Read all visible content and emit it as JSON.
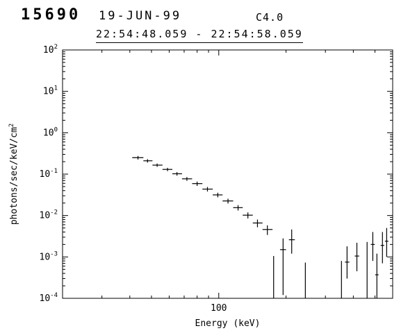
{
  "header": {
    "burst_number": "15690",
    "date": "19-JUN-99",
    "flare_class": "C4.0",
    "time_range": "22:54:48.059 - 22:54:58.059"
  },
  "chart_data": {
    "type": "scatter",
    "title": "15690 19-JUN-99 C4.0",
    "subtitle": "22:54:48.059 - 22:54:58.059",
    "xlabel": "Energy (keV)",
    "ylabel": "photons/sec/keV/cm^2",
    "x_scale": "log",
    "y_scale": "log",
    "xlim": [
      20,
      600
    ],
    "ylim": [
      0.0001,
      100.0
    ],
    "grid": false,
    "legend": "none",
    "marker": "plus-with-error-bars",
    "color": "#000000",
    "x_major_ticks": [
      100
    ],
    "x_tick_labels": [
      "100"
    ],
    "y_tick_exponents": [
      2,
      1,
      0,
      -1,
      -2,
      -3,
      -4
    ],
    "points": [
      {
        "e": 43.5,
        "e1": 41,
        "e2": 46,
        "f": 0.25,
        "f1": 0.225,
        "f2": 0.275
      },
      {
        "e": 48,
        "e1": 46,
        "e2": 50.5,
        "f": 0.21,
        "f1": 0.19,
        "f2": 0.23
      },
      {
        "e": 53,
        "e1": 50.5,
        "e2": 56,
        "f": 0.165,
        "f1": 0.15,
        "f2": 0.18
      },
      {
        "e": 59,
        "e1": 56,
        "e2": 62,
        "f": 0.13,
        "f1": 0.118,
        "f2": 0.142
      },
      {
        "e": 65,
        "e1": 62,
        "e2": 68.5,
        "f": 0.102,
        "f1": 0.092,
        "f2": 0.112
      },
      {
        "e": 72,
        "e1": 68.5,
        "e2": 76,
        "f": 0.077,
        "f1": 0.069,
        "f2": 0.085
      },
      {
        "e": 80,
        "e1": 76,
        "e2": 84.5,
        "f": 0.059,
        "f1": 0.052,
        "f2": 0.066
      },
      {
        "e": 89,
        "e1": 84.5,
        "e2": 94,
        "f": 0.0435,
        "f1": 0.038,
        "f2": 0.049
      },
      {
        "e": 99,
        "e1": 94,
        "e2": 104,
        "f": 0.0315,
        "f1": 0.0275,
        "f2": 0.0355
      },
      {
        "e": 110,
        "e1": 104,
        "e2": 116,
        "f": 0.0225,
        "f1": 0.0195,
        "f2": 0.0255
      },
      {
        "e": 122,
        "e1": 116,
        "e2": 128,
        "f": 0.0155,
        "f1": 0.0132,
        "f2": 0.0178
      },
      {
        "e": 135,
        "e1": 128,
        "e2": 142,
        "f": 0.0102,
        "f1": 0.0085,
        "f2": 0.0119
      },
      {
        "e": 149,
        "e1": 142,
        "e2": 157,
        "f": 0.0066,
        "f1": 0.0052,
        "f2": 0.008
      },
      {
        "e": 165,
        "e1": 157,
        "e2": 174,
        "f": 0.0046,
        "f1": 0.0034,
        "f2": 0.0058
      },
      {
        "e": 176,
        "e1": 176,
        "e2": 176,
        "f": 0.0004,
        "f1": 1e-05,
        "f2": 0.00105
      },
      {
        "e": 194,
        "e1": 188,
        "e2": 200,
        "f": 0.0015,
        "f1": 0.00012,
        "f2": 0.0028
      },
      {
        "e": 212,
        "e1": 206,
        "e2": 219,
        "f": 0.0026,
        "f1": 0.0012,
        "f2": 0.0046
      },
      {
        "e": 244,
        "e1": 244,
        "e2": 244,
        "f": 0.0002,
        "f1": 1e-05,
        "f2": 0.00073
      },
      {
        "e": 354,
        "e1": 354,
        "e2": 354,
        "f": 0.0003,
        "f1": 1e-05,
        "f2": 0.0008
      },
      {
        "e": 375,
        "e1": 367,
        "e2": 384,
        "f": 0.00075,
        "f1": 0.0003,
        "f2": 0.0018
      },
      {
        "e": 415,
        "e1": 406,
        "e2": 425,
        "f": 0.00105,
        "f1": 0.00045,
        "f2": 0.0022
      },
      {
        "e": 461,
        "e1": 461,
        "e2": 461,
        "f": 0.0004,
        "f1": 1e-05,
        "f2": 0.0023
      },
      {
        "e": 489,
        "e1": 479,
        "e2": 499,
        "f": 0.002,
        "f1": 0.0008,
        "f2": 0.004
      },
      {
        "e": 510,
        "e1": 501,
        "e2": 519,
        "f": 0.00037,
        "f1": 1e-05,
        "f2": 0.0012
      },
      {
        "e": 540,
        "e1": 530,
        "e2": 550,
        "f": 0.0019,
        "f1": 0.0007,
        "f2": 0.004
      },
      {
        "e": 564,
        "e1": 554,
        "e2": 574,
        "f": 0.0024,
        "f1": 0.001,
        "f2": 0.005
      }
    ]
  }
}
